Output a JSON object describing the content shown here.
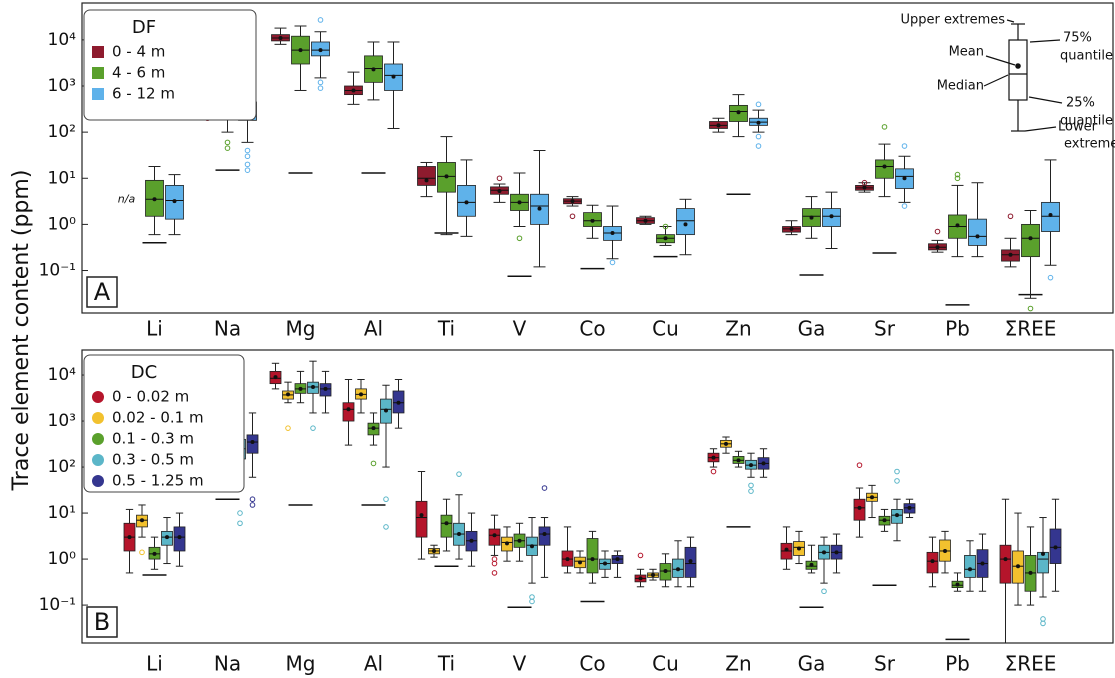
{
  "chart_data": [
    {
      "type": "box",
      "panel": "A",
      "ylabel": "Trace element content (ppm)",
      "legend_title": "DF",
      "log_scale": true,
      "categories": [
        "Li",
        "Na",
        "Mg",
        "Al",
        "Ti",
        "V",
        "Co",
        "Cu",
        "Zn",
        "Ga",
        "Sr",
        "Pb",
        "ΣREE"
      ],
      "ylim": [
        0.012,
        63000
      ],
      "yticks": [
        {
          "value": 0.1,
          "label": "10⁻¹"
        },
        {
          "value": 1,
          "label": "10⁰"
        },
        {
          "value": 10,
          "label": "10¹"
        },
        {
          "value": 100,
          "label": "10²"
        },
        {
          "value": 1000,
          "label": "10³"
        },
        {
          "value": 10000,
          "label": "10⁴"
        }
      ],
      "limits": [
        0.4,
        15,
        13,
        13,
        0.65,
        0.075,
        0.11,
        0.2,
        4.5,
        0.08,
        0.24,
        0.018,
        0.03
      ],
      "na_label": "n/a",
      "annotations": {
        "upper": "Upper extremes",
        "q3": [
          "75%",
          "quantile"
        ],
        "mean": "Mean",
        "median": "Median",
        "q1": [
          "25%",
          "quantile"
        ],
        "lower": [
          "Lower",
          "extremes"
        ]
      },
      "series": [
        {
          "name": "0 - 4 m",
          "color": "#8e1b2e",
          "marker": "square",
          "min": [
            null,
            200,
            8000,
            400,
            4,
            3,
            2.5,
            1.0,
            100,
            0.6,
            5,
            0.25,
            0.12
          ],
          "q1": [
            null,
            230,
            9500,
            650,
            7,
            4.5,
            2.8,
            1.05,
            120,
            0.68,
            5.5,
            0.28,
            0.16
          ],
          "median": [
            null,
            270,
            11000,
            800,
            10,
            5.5,
            3.2,
            1.2,
            140,
            0.8,
            6.2,
            0.32,
            0.22
          ],
          "q3": [
            null,
            320,
            13000,
            1000,
            18,
            6.5,
            3.6,
            1.4,
            170,
            0.9,
            7,
            0.38,
            0.28
          ],
          "max": [
            null,
            400,
            18000,
            2000,
            22,
            7.5,
            4.0,
            1.5,
            200,
            1.2,
            8,
            0.45,
            0.5
          ],
          "mean": [
            null,
            280,
            11000,
            800,
            9,
            5.3,
            3.2,
            1.2,
            140,
            0.8,
            6.3,
            0.32,
            0.22
          ],
          "outliers": [
            [],
            [
              750,
              350,
              200
            ],
            [],
            [],
            [],
            [
              10
            ],
            [
              1.5
            ],
            [],
            [],
            [],
            [
              8
            ],
            [
              0.7
            ],
            [
              1.5
            ]
          ]
        },
        {
          "name": "4 - 6 m",
          "color": "#5aa02c",
          "marker": "square",
          "min": [
            0.6,
            100,
            800,
            500,
            0.6,
            0.9,
            0.5,
            0.35,
            80,
            0.5,
            4,
            0.2,
            0.025
          ],
          "q1": [
            1.5,
            250,
            3000,
            1200,
            5,
            2,
            0.9,
            0.4,
            170,
            0.9,
            10,
            0.5,
            0.2
          ],
          "median": [
            3.5,
            450,
            6000,
            2400,
            11,
            3,
            1.2,
            0.5,
            280,
            1.5,
            18,
            0.9,
            0.5
          ],
          "q3": [
            9,
            700,
            12000,
            4500,
            22,
            4.5,
            1.8,
            0.6,
            380,
            2.2,
            25,
            1.6,
            1
          ],
          "max": [
            18,
            1800,
            20000,
            9000,
            80,
            13,
            2.6,
            0.9,
            650,
            4,
            55,
            7,
            2
          ],
          "mean": [
            3.5,
            450,
            6000,
            2300,
            11,
            3,
            1.2,
            0.5,
            270,
            1.4,
            18,
            0.95,
            0.5
          ],
          "outliers": [
            [],
            [
              60,
              45
            ],
            [],
            [],
            [],
            [
              0.5
            ],
            [
              1.5
            ],
            [
              0.9
            ],
            [],
            [],
            [
              130
            ],
            [
              12,
              10
            ],
            [
              0.015
            ]
          ]
        },
        {
          "name": "6 - 12 m",
          "color": "#5fb2ea",
          "marker": "square",
          "min": [
            0.6,
            60,
            1500,
            120,
            0.55,
            0.12,
            0.18,
            0.22,
            100,
            0.3,
            3,
            0.2,
            0.13
          ],
          "q1": [
            1.3,
            180,
            4500,
            800,
            1.5,
            1,
            0.45,
            0.6,
            140,
            0.9,
            6,
            0.35,
            0.7
          ],
          "median": [
            3.3,
            300,
            6000,
            1700,
            3,
            2.5,
            0.65,
            1.2,
            165,
            1.5,
            11,
            0.55,
            1.5
          ],
          "q3": [
            7,
            450,
            9000,
            3000,
            7,
            4.5,
            0.9,
            2.2,
            200,
            2.2,
            16,
            1.3,
            3
          ],
          "max": [
            12,
            1800,
            15000,
            9000,
            25,
            40,
            2.5,
            3.5,
            300,
            5,
            30,
            8,
            25
          ],
          "mean": [
            3.2,
            290,
            6000,
            1600,
            3,
            2.2,
            0.65,
            1.0,
            160,
            1.5,
            10,
            0.55,
            1.6
          ],
          "outliers": [
            [],
            [
              40,
              30,
              20,
              15
            ],
            [
              27000,
              1200,
              900
            ],
            [],
            [],
            [],
            [
              0.15
            ],
            [],
            [
              400,
              80,
              50
            ],
            [],
            [
              50,
              2.5
            ],
            [],
            [
              0.07
            ]
          ]
        }
      ]
    },
    {
      "type": "box",
      "panel": "B",
      "legend_title": "DC",
      "log_scale": true,
      "categories": [
        "Li",
        "Na",
        "Mg",
        "Al",
        "Ti",
        "V",
        "Co",
        "Cu",
        "Zn",
        "Ga",
        "Sr",
        "Pb",
        "ΣREE"
      ],
      "ylim": [
        0.015,
        35000
      ],
      "yticks": [
        {
          "value": 0.1,
          "label": "10⁻¹"
        },
        {
          "value": 1,
          "label": "10⁰"
        },
        {
          "value": 10,
          "label": "10¹"
        },
        {
          "value": 100,
          "label": "10²"
        },
        {
          "value": 1000,
          "label": "10³"
        },
        {
          "value": 10000,
          "label": "10⁴"
        }
      ],
      "limits": [
        0.45,
        20,
        15,
        15,
        0.7,
        0.09,
        0.12,
        null,
        5,
        0.09,
        0.27,
        0.018,
        null
      ],
      "series": [
        {
          "name": "0 - 0.02 m",
          "color": "#b5152b",
          "marker": "circle",
          "min": [
            0.5,
            120,
            5000,
            300,
            1,
            1.2,
            0.5,
            0.25,
            100,
            0.6,
            3,
            0.25,
            0.015
          ],
          "q1": [
            1.5,
            220,
            6500,
            1000,
            3,
            2,
            0.7,
            0.32,
            130,
            1,
            7,
            0.5,
            0.3
          ],
          "median": [
            3,
            300,
            8500,
            1800,
            8,
            3.3,
            1,
            0.38,
            160,
            1.5,
            13,
            0.9,
            1
          ],
          "q3": [
            6,
            420,
            12000,
            2500,
            18,
            4.5,
            1.5,
            0.45,
            200,
            2.2,
            20,
            1.4,
            2
          ],
          "max": [
            12,
            800,
            18000,
            8000,
            80,
            9,
            5,
            0.6,
            250,
            5,
            35,
            3,
            20
          ],
          "mean": [
            3,
            300,
            9000,
            1800,
            9,
            3.3,
            1,
            0.38,
            160,
            1.6,
            13,
            0.9,
            1
          ],
          "outliers": [
            [],
            [
              100,
              70
            ],
            [],
            [],
            [],
            [
              0.5,
              1,
              0.8
            ],
            [],
            [
              1.2
            ],
            [
              80
            ],
            [],
            [
              110
            ],
            [],
            []
          ]
        },
        {
          "name": "0.02 - 0.1 m",
          "color": "#f2c12e",
          "marker": "circle",
          "min": [
            3,
            250,
            2500,
            1500,
            1.1,
            0.9,
            0.5,
            0.35,
            200,
            0.8,
            8,
            0.5,
            0.1
          ],
          "q1": [
            5,
            400,
            3000,
            3000,
            1.3,
            1.5,
            0.65,
            0.4,
            270,
            1.2,
            18,
            0.9,
            0.3
          ],
          "median": [
            7,
            550,
            3700,
            3800,
            1.5,
            2.3,
            0.9,
            0.45,
            320,
            1.8,
            22,
            1.5,
            0.7
          ],
          "q3": [
            9,
            700,
            4500,
            5000,
            1.7,
            3,
            1.1,
            0.5,
            380,
            2.4,
            27,
            2.6,
            1.5
          ],
          "max": [
            15,
            1500,
            7000,
            8000,
            2,
            5,
            1.5,
            0.6,
            450,
            4,
            40,
            4,
            10
          ],
          "mean": [
            7,
            550,
            3800,
            3800,
            1.5,
            2.2,
            0.85,
            0.45,
            320,
            1.7,
            22,
            1.5,
            0.7
          ],
          "outliers": [
            [
              1.4
            ],
            [
              150
            ],
            [
              700
            ],
            [],
            [],
            [],
            [],
            [],
            [],
            [],
            [],
            [],
            []
          ]
        },
        {
          "name": "0.1 - 0.3 m",
          "color": "#5aa02c",
          "marker": "circle",
          "min": [
            0.6,
            80,
            2500,
            300,
            1.5,
            0.9,
            0.3,
            0.25,
            100,
            0.5,
            4,
            0.2,
            0.1
          ],
          "q1": [
            1,
            150,
            4000,
            500,
            3,
            1.8,
            0.5,
            0.35,
            120,
            0.6,
            5.5,
            0.24,
            0.2
          ],
          "median": [
            1.3,
            200,
            5000,
            700,
            6,
            2.5,
            1,
            0.55,
            140,
            0.7,
            7,
            0.27,
            0.5
          ],
          "q3": [
            1.8,
            280,
            6500,
            900,
            9,
            3.5,
            2.8,
            0.8,
            170,
            0.9,
            8.5,
            0.33,
            1.2
          ],
          "max": [
            3,
            600,
            12000,
            1500,
            20,
            6,
            4,
            1.3,
            220,
            2,
            12,
            0.5,
            5
          ],
          "mean": [
            1.3,
            200,
            5000,
            700,
            6,
            2.5,
            1,
            0.55,
            140,
            0.75,
            7,
            0.28,
            0.5
          ],
          "outliers": [
            [],
            [],
            [],
            [
              120
            ],
            [],
            [],
            [],
            [],
            [],
            [],
            [],
            [],
            []
          ]
        },
        {
          "name": "0.3 - 0.5 m",
          "color": "#5bb6c8",
          "marker": "circle",
          "min": [
            0.8,
            40,
            1500,
            100,
            1,
            0.3,
            0.4,
            0.25,
            60,
            0.3,
            2.5,
            0.2,
            0.15
          ],
          "q1": [
            2,
            150,
            4000,
            900,
            2,
            1.2,
            0.6,
            0.4,
            90,
            1,
            6,
            0.4,
            0.5
          ],
          "median": [
            3,
            250,
            5500,
            1800,
            3.5,
            2,
            0.8,
            0.6,
            110,
            1.4,
            9,
            0.6,
            1
          ],
          "q3": [
            4,
            400,
            7000,
            3000,
            6,
            3,
            1,
            1,
            140,
            2,
            12,
            1.2,
            1.4
          ],
          "max": [
            8,
            1200,
            20000,
            6000,
            25,
            8,
            1.5,
            2.5,
            200,
            3,
            20,
            2.5,
            8
          ],
          "mean": [
            3,
            250,
            5500,
            1700,
            3.5,
            1.9,
            0.8,
            0.6,
            110,
            1.4,
            9,
            0.6,
            1.3
          ],
          "outliers": [
            [],
            [
              10,
              6
            ],
            [
              700
            ],
            [
              20,
              5
            ],
            [
              70
            ],
            [
              0.15,
              0.12
            ],
            [],
            [],
            [
              40,
              30
            ],
            [
              0.2
            ],
            [
              80,
              50
            ],
            [],
            [
              0.05,
              0.04
            ]
          ]
        },
        {
          "name": "0.5 - 1.25 m",
          "color": "#34368f",
          "marker": "circle",
          "min": [
            0.7,
            60,
            1500,
            700,
            0.7,
            0.4,
            0.4,
            0.25,
            60,
            0.5,
            8,
            0.2,
            0.2
          ],
          "q1": [
            1.5,
            200,
            3500,
            1500,
            1.5,
            2,
            0.8,
            0.4,
            90,
            1,
            10,
            0.4,
            0.8
          ],
          "median": [
            3,
            350,
            5000,
            2500,
            2.5,
            3.5,
            1,
            0.8,
            120,
            1.4,
            13,
            0.8,
            1.8
          ],
          "q3": [
            5,
            500,
            6500,
            4500,
            4,
            5,
            1.2,
            1.8,
            160,
            2,
            16,
            1.6,
            4.5
          ],
          "max": [
            10,
            1500,
            12000,
            8000,
            10,
            8,
            1.5,
            3,
            250,
            3.5,
            20,
            3.5,
            20
          ],
          "mean": [
            3,
            350,
            5000,
            2500,
            2.5,
            3.5,
            1,
            0.9,
            120,
            1.4,
            13,
            0.8,
            1.8
          ],
          "outliers": [
            [],
            [
              20,
              15
            ],
            [],
            [],
            [],
            [
              35
            ],
            [],
            [],
            [],
            [],
            [],
            [],
            []
          ]
        }
      ]
    }
  ]
}
